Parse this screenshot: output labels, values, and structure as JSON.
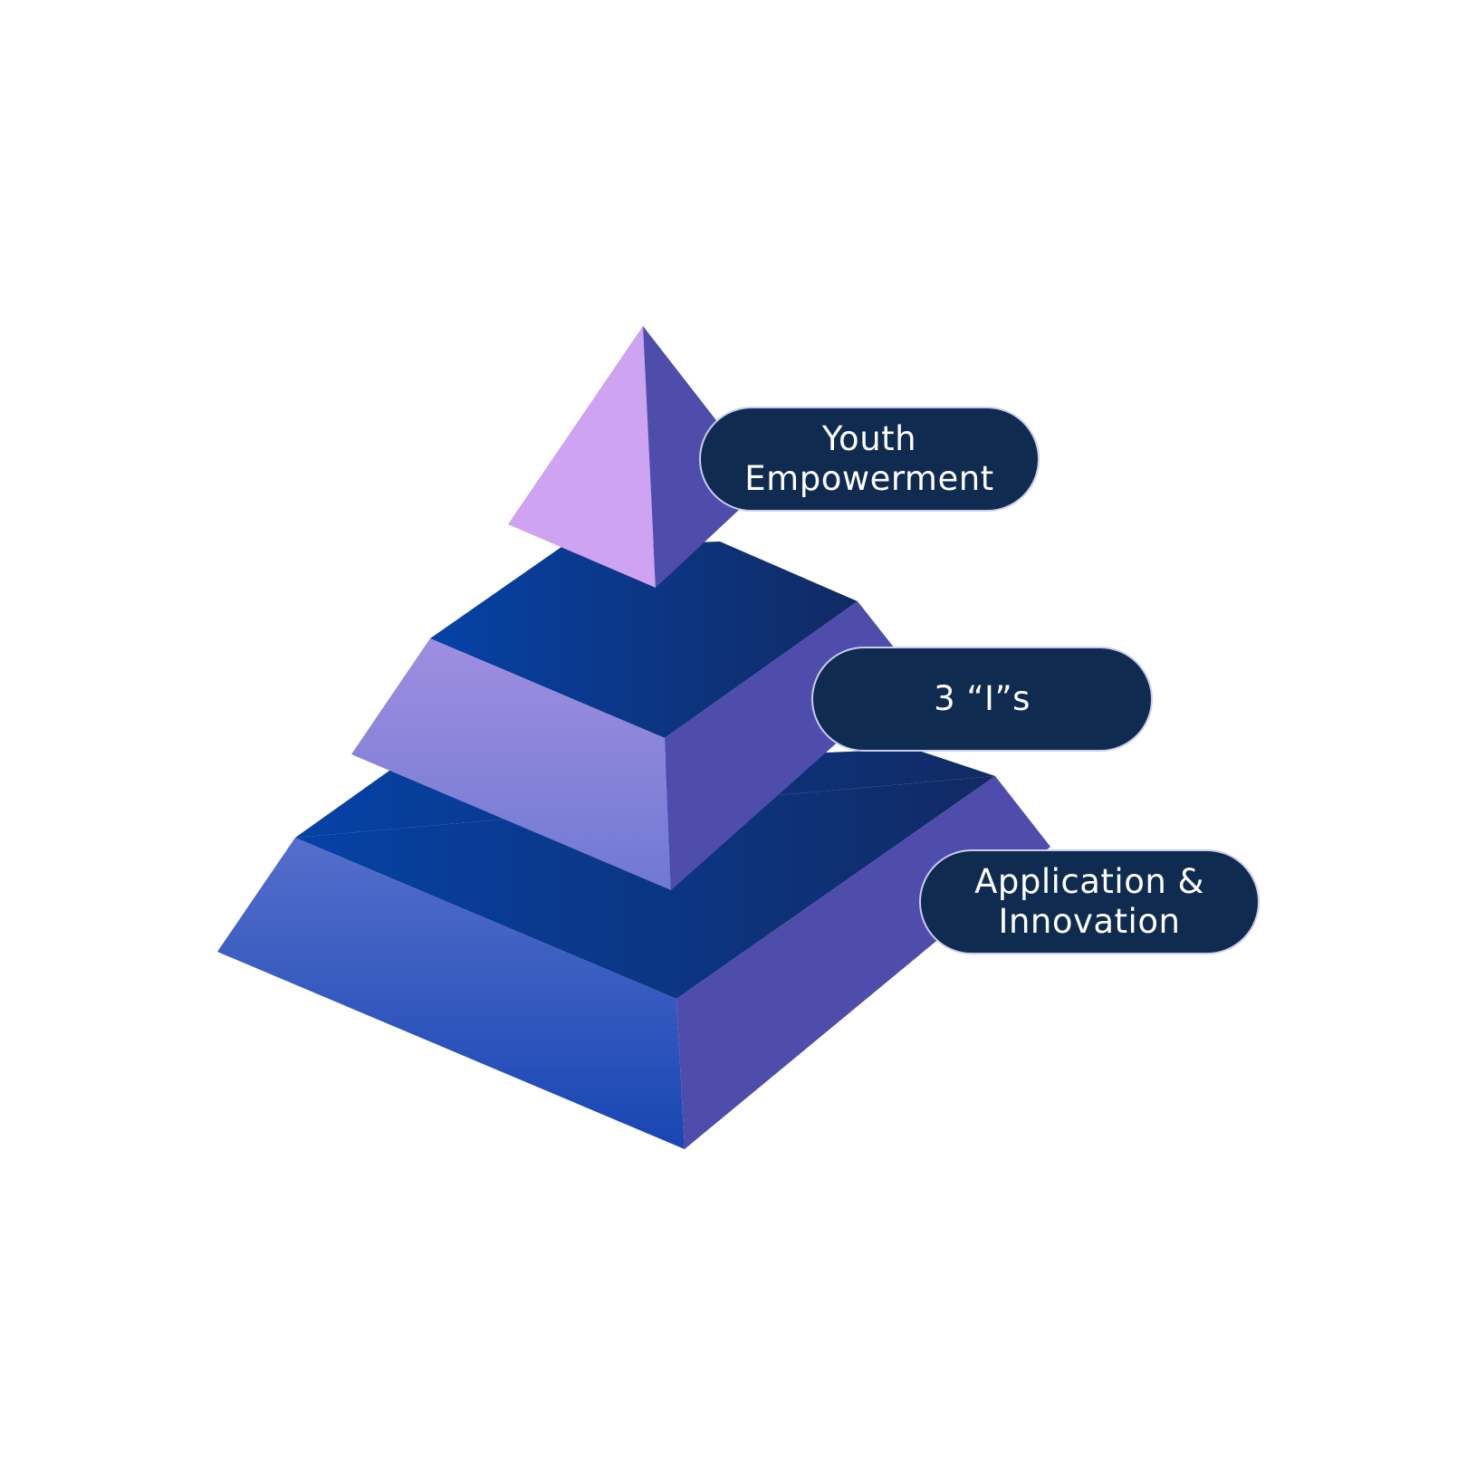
{
  "diagram": {
    "type": "pyramid",
    "levels": [
      {
        "label": "Youth\nEmpowerment"
      },
      {
        "label": "3 “I”s"
      },
      {
        "label": "Application &\nInnovation"
      }
    ]
  },
  "colors": {
    "pill_background": "#0f2b4f",
    "pill_border": "#c9cdf0",
    "pill_text": "#ffffff",
    "top_left_face": "#cda3f2",
    "right_faces": "#4e4dac",
    "top_faces_light": "#0542a6",
    "top_faces_dark": "#112a63",
    "middle_front_light": "#9f8ee0",
    "middle_front_dark": "#6f79d3",
    "bottom_front_light": "#556ecb",
    "bottom_front_dark": "#1746b3"
  }
}
